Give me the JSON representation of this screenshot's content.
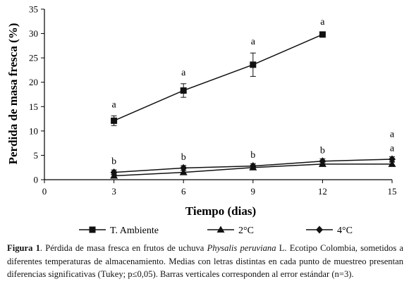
{
  "chart_data": {
    "type": "line",
    "title": "",
    "xlabel": "Tiempo (dias)",
    "ylabel": "Perdida de masa fresca (%)",
    "xlim": [
      0,
      15
    ],
    "ylim": [
      0,
      35
    ],
    "x_ticks": [
      0,
      3,
      6,
      9,
      12,
      15
    ],
    "y_ticks": [
      0,
      5,
      10,
      15,
      20,
      25,
      30,
      35
    ],
    "grid": false,
    "legend_position": "bottom",
    "series": [
      {
        "name": "T. Ambiente",
        "marker": "square",
        "x": [
          3,
          6,
          9,
          12
        ],
        "y": [
          12.1,
          18.3,
          23.6,
          29.8
        ],
        "error": [
          1.0,
          1.4,
          2.4,
          0.3
        ],
        "letters": [
          "a",
          "a",
          "a",
          "a"
        ]
      },
      {
        "name": "2°C",
        "marker": "triangle",
        "x": [
          3,
          6,
          9,
          12,
          15
        ],
        "y": [
          0.8,
          1.5,
          2.5,
          3.2,
          3.2
        ],
        "error": [
          0.3,
          0.4,
          0.4,
          0.4,
          0.4
        ],
        "letters": [
          "",
          "",
          "",
          "",
          "a"
        ]
      },
      {
        "name": "4°C",
        "marker": "diamond",
        "x": [
          3,
          6,
          9,
          12,
          15
        ],
        "y": [
          1.5,
          2.4,
          2.8,
          3.8,
          4.2
        ],
        "error": [
          0.5,
          0.5,
          0.5,
          0.5,
          0.5
        ],
        "letters": [
          "b",
          "b",
          "b",
          "b",
          "a"
        ]
      }
    ]
  },
  "caption": {
    "label": "Figura 1",
    "text_before": ". Pérdida de masa fresca en frutos de uchuva ",
    "species": "Physalis peruviana",
    "text_after": " L. Ecotipo Colombia, sometidos a diferentes temperaturas de almacenamiento. Medias con letras distintas en cada punto de muestreo presentan diferencias significativas (Tukey; p≤0,05). Barras verticales corresponden al error estándar (n=3)."
  }
}
